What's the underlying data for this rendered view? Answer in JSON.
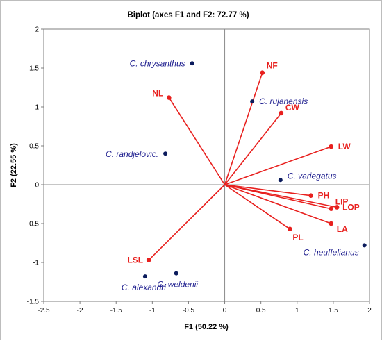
{
  "chart_data": {
    "type": "scatter",
    "title": "Biplot (axes F1 and F2: 72.77 %)",
    "xlabel": "F1 (50.22 %)",
    "ylabel": "F2 (22.55 %)",
    "xlim": [
      -2.5,
      2
    ],
    "ylim": [
      -1.5,
      2
    ],
    "xticks": [
      "-2.5",
      "-2",
      "-1.5",
      "-1",
      "-0.5",
      "0",
      "0.5",
      "1",
      "1.5",
      "2"
    ],
    "yticks": [
      "-1.5",
      "-1",
      "-0.5",
      "0",
      "0.5",
      "1",
      "1.5",
      "2"
    ],
    "grid": false,
    "observation_color": "#0b1b5c",
    "variable_color": "#e8201e",
    "observations": [
      {
        "label": "C. chrysanthus",
        "x": -0.45,
        "y": 1.56
      },
      {
        "label": "C. rujanensis",
        "x": 0.38,
        "y": 1.07
      },
      {
        "label": "C. randjelovic.",
        "x": -0.82,
        "y": 0.4
      },
      {
        "label": "C. variegatus",
        "x": 0.77,
        "y": 0.06
      },
      {
        "label": "C. heuffelianus",
        "x": 1.93,
        "y": -0.78
      },
      {
        "label": "C. alexandri",
        "x": -1.1,
        "y": -1.18
      },
      {
        "label": "C. weldenii",
        "x": -0.67,
        "y": -1.14
      }
    ],
    "variables": [
      {
        "label": "NF",
        "x": 0.52,
        "y": 1.44
      },
      {
        "label": "NL",
        "x": -0.77,
        "y": 1.12
      },
      {
        "label": "CW",
        "x": 0.78,
        "y": 0.92
      },
      {
        "label": "LW",
        "x": 1.47,
        "y": 0.49
      },
      {
        "label": "PH",
        "x": 1.19,
        "y": -0.14
      },
      {
        "label": "LOP",
        "x": 1.55,
        "y": -0.29
      },
      {
        "label": "LIP",
        "x": 1.47,
        "y": -0.31
      },
      {
        "label": "LA",
        "x": 1.47,
        "y": -0.5
      },
      {
        "label": "PL",
        "x": 0.9,
        "y": -0.57
      },
      {
        "label": "LSL",
        "x": -1.05,
        "y": -0.97
      }
    ]
  }
}
